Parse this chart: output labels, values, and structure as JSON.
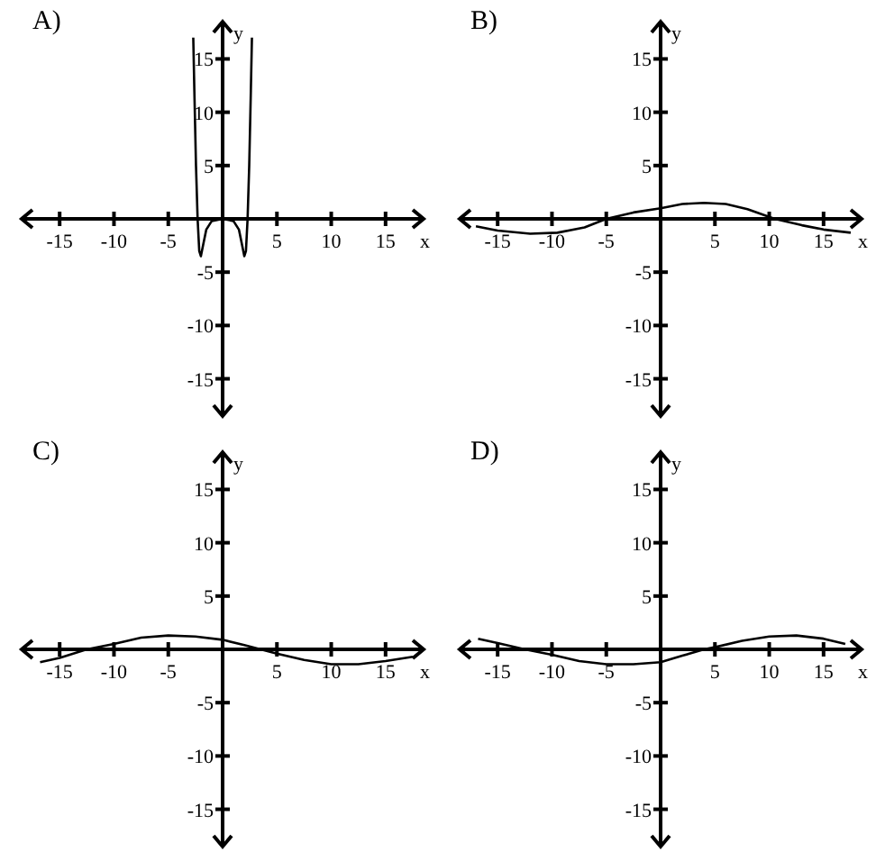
{
  "chart_data": [
    {
      "type": "line",
      "title": "A)",
      "xlabel": "x",
      "ylabel": "y",
      "xlim": [
        -18.5,
        18.5
      ],
      "ylim": [
        -18.5,
        18.5
      ],
      "xticks": [
        -15,
        -10,
        -5,
        5,
        10,
        15
      ],
      "yticks": [
        -15,
        -10,
        -5,
        5,
        10,
        15
      ],
      "grid": false,
      "series": [
        {
          "color": "#000000",
          "x": [
            -2.7,
            -2.6,
            -2.45,
            -2.3,
            -2.15,
            -2.0,
            -1.8,
            -1.5,
            -1,
            0,
            1,
            1.5,
            1.8,
            2.0,
            2.15,
            2.3,
            2.45,
            2.6,
            2.7
          ],
          "values": [
            17,
            12,
            5,
            0,
            -3,
            -3.5,
            -2.5,
            -1,
            -0.2,
            0,
            -0.2,
            -1,
            -2.5,
            -3.5,
            -3,
            0,
            5,
            12,
            17
          ]
        }
      ]
    },
    {
      "type": "line",
      "title": "B)",
      "xlabel": "x",
      "ylabel": "y",
      "xlim": [
        -18.5,
        18.5
      ],
      "ylim": [
        -18.5,
        18.5
      ],
      "xticks": [
        -15,
        -10,
        -5,
        5,
        10,
        15
      ],
      "yticks": [
        -15,
        -10,
        -5,
        5,
        10,
        15
      ],
      "grid": false,
      "series": [
        {
          "color": "#000000",
          "x": [
            -17,
            -15,
            -12,
            -9.5,
            -7,
            -5,
            -2.5,
            0,
            2,
            4,
            6,
            8,
            10.5,
            13,
            15,
            17.5
          ],
          "values": [
            -0.7,
            -1.1,
            -1.4,
            -1.3,
            -0.8,
            0,
            0.6,
            1,
            1.4,
            1.5,
            1.4,
            0.9,
            0,
            -0.6,
            -1,
            -1.3
          ]
        }
      ]
    },
    {
      "type": "line",
      "title": "C)",
      "xlabel": "x",
      "ylabel": "y",
      "xlim": [
        -18.5,
        18.5
      ],
      "ylim": [
        -18.5,
        18.5
      ],
      "xticks": [
        -15,
        -10,
        -5,
        5,
        10,
        15
      ],
      "yticks": [
        -15,
        -10,
        -5,
        5,
        10,
        15
      ],
      "grid": false,
      "series": [
        {
          "color": "#000000",
          "x": [
            -16.8,
            -15,
            -12.5,
            -10,
            -7.5,
            -5,
            -2.5,
            0,
            2,
            3.5,
            5,
            7.5,
            10,
            12.5,
            15,
            17.5
          ],
          "values": [
            -1.2,
            -0.8,
            0,
            0.5,
            1.1,
            1.3,
            1.2,
            0.9,
            0.4,
            0,
            -0.4,
            -1,
            -1.4,
            -1.4,
            -1.1,
            -0.7
          ]
        }
      ]
    },
    {
      "type": "line",
      "title": "D)",
      "xlabel": "x",
      "ylabel": "y",
      "xlim": [
        -18.5,
        18.5
      ],
      "ylim": [
        -18.5,
        18.5
      ],
      "xticks": [
        -15,
        -10,
        -5,
        5,
        10,
        15
      ],
      "yticks": [
        -15,
        -10,
        -5,
        5,
        10,
        15
      ],
      "grid": false,
      "series": [
        {
          "color": "#000000",
          "x": [
            -16.8,
            -15,
            -12.5,
            -10,
            -7.5,
            -5,
            -2.5,
            0,
            2,
            4,
            5,
            7.5,
            10,
            12.5,
            15,
            17
          ],
          "values": [
            1,
            0.6,
            0,
            -0.5,
            -1.1,
            -1.4,
            -1.4,
            -1.2,
            -0.6,
            0,
            0.2,
            0.8,
            1.2,
            1.3,
            1,
            0.5
          ]
        }
      ]
    }
  ]
}
